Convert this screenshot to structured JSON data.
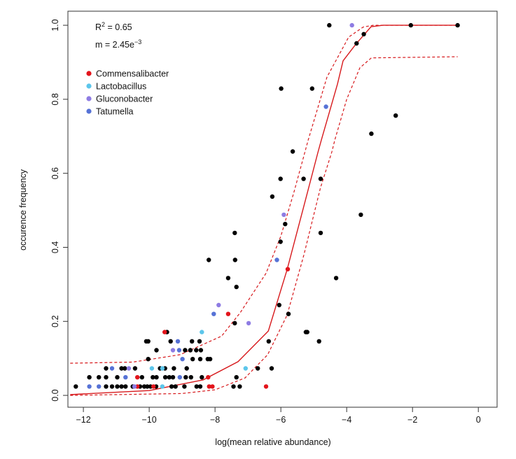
{
  "chart_data": {
    "type": "scatter",
    "title": "",
    "xlabel": "log(mean relative abundance)",
    "ylabel": "occurence frequency",
    "xlim": [
      -12.47,
      0.57
    ],
    "ylim": [
      -0.032,
      1.038
    ],
    "xticks": [
      -12,
      -10,
      -8,
      -6,
      -4,
      -2,
      0
    ],
    "xtick_labels": [
      "−12",
      "−10",
      "−8",
      "−6",
      "−4",
      "−2",
      "0"
    ],
    "yticks": [
      0,
      0.2,
      0.4,
      0.6,
      0.8,
      1.0
    ],
    "ytick_labels": [
      "0.0",
      "0.2",
      "0.4",
      "0.6",
      "0.8",
      "1.0"
    ],
    "grid": false,
    "legend_position": "top-left",
    "annotations": {
      "r2_label": "R",
      "r2_sup": "2",
      "r2_value": " = 0.65",
      "m_label": "m = 2.45e",
      "m_sup": "−3"
    },
    "fit": {
      "color": "#d7191c",
      "model": [
        [
          -12.4,
          0.002
        ],
        [
          -12,
          0.004
        ],
        [
          -10,
          0.013
        ],
        [
          -8.36,
          0.042
        ],
        [
          -7.3,
          0.091
        ],
        [
          -6.38,
          0.174
        ],
        [
          -5.81,
          0.34
        ],
        [
          -5.29,
          0.515
        ],
        [
          -4.87,
          0.658
        ],
        [
          -4.77,
          0.69
        ],
        [
          -4.28,
          0.841
        ],
        [
          -4.11,
          0.904
        ],
        [
          -3.72,
          0.949
        ],
        [
          -3.26,
          0.996
        ],
        [
          -2.9,
          1.0
        ],
        [
          -0.63,
          1.0
        ]
      ],
      "upper": [
        [
          -12.4,
          0.087
        ],
        [
          -10.5,
          0.09
        ],
        [
          -9.06,
          0.11
        ],
        [
          -7.8,
          0.16
        ],
        [
          -7.23,
          0.224
        ],
        [
          -6.45,
          0.33
        ],
        [
          -6.0,
          0.43
        ],
        [
          -5.6,
          0.55
        ],
        [
          -5.17,
          0.69
        ],
        [
          -4.6,
          0.86
        ],
        [
          -3.94,
          0.968
        ],
        [
          -3.5,
          0.995
        ],
        [
          -3.2,
          1.0
        ],
        [
          -0.63,
          1.0
        ]
      ],
      "lower": [
        [
          -12.4,
          0.0
        ],
        [
          -9,
          0.005
        ],
        [
          -8,
          0.015
        ],
        [
          -7.09,
          0.047
        ],
        [
          -6.4,
          0.11
        ],
        [
          -5.81,
          0.217
        ],
        [
          -5.3,
          0.38
        ],
        [
          -4.8,
          0.56
        ],
        [
          -4.45,
          0.658
        ],
        [
          -4.36,
          0.69
        ],
        [
          -4.0,
          0.8
        ],
        [
          -3.6,
          0.885
        ],
        [
          -3.25,
          0.912
        ],
        [
          -0.63,
          0.915
        ]
      ]
    },
    "series": [
      {
        "color": "#000000",
        "points": [
          [
            -12.23,
            0.024
          ],
          [
            -11.31,
            0.024
          ],
          [
            -11.13,
            0.024
          ],
          [
            -10.97,
            0.024
          ],
          [
            -10.84,
            0.024
          ],
          [
            -10.72,
            0.024
          ],
          [
            -10.5,
            0.024
          ],
          [
            -10.28,
            0.024
          ],
          [
            -10.15,
            0.024
          ],
          [
            -10.06,
            0.024
          ],
          [
            -9.96,
            0.024
          ],
          [
            -9.79,
            0.024
          ],
          [
            -9.32,
            0.024
          ],
          [
            -9.2,
            0.024
          ],
          [
            -8.93,
            0.024
          ],
          [
            -8.56,
            0.024
          ],
          [
            -8.45,
            0.024
          ],
          [
            -7.44,
            0.024
          ],
          [
            -7.25,
            0.024
          ],
          [
            -11.82,
            0.049
          ],
          [
            -11.53,
            0.049
          ],
          [
            -11.31,
            0.049
          ],
          [
            -10.97,
            0.049
          ],
          [
            -10.22,
            0.049
          ],
          [
            -9.89,
            0.049
          ],
          [
            -9.78,
            0.049
          ],
          [
            -9.51,
            0.049
          ],
          [
            -9.39,
            0.049
          ],
          [
            -9.28,
            0.049
          ],
          [
            -8.89,
            0.049
          ],
          [
            -8.73,
            0.049
          ],
          [
            -8.4,
            0.049
          ],
          [
            -7.35,
            0.049
          ],
          [
            -11.31,
            0.073
          ],
          [
            -10.84,
            0.073
          ],
          [
            -10.74,
            0.073
          ],
          [
            -10.43,
            0.073
          ],
          [
            -9.67,
            0.073
          ],
          [
            -9.52,
            0.073
          ],
          [
            -9.25,
            0.073
          ],
          [
            -8.86,
            0.073
          ],
          [
            -6.7,
            0.073
          ],
          [
            -6.28,
            0.073
          ],
          [
            -10.03,
            0.098
          ],
          [
            -8.68,
            0.098
          ],
          [
            -8.45,
            0.098
          ],
          [
            -8.22,
            0.098
          ],
          [
            -8.15,
            0.098
          ],
          [
            -9.78,
            0.122
          ],
          [
            -8.91,
            0.122
          ],
          [
            -8.75,
            0.122
          ],
          [
            -8.57,
            0.122
          ],
          [
            -8.43,
            0.122
          ],
          [
            -10.09,
            0.146
          ],
          [
            -10.03,
            0.146
          ],
          [
            -9.35,
            0.146
          ],
          [
            -8.7,
            0.146
          ],
          [
            -8.47,
            0.146
          ],
          [
            -6.37,
            0.146
          ],
          [
            -4.84,
            0.146
          ],
          [
            -9.46,
            0.171
          ],
          [
            -5.24,
            0.171
          ],
          [
            -5.2,
            0.171
          ],
          [
            -7.4,
            0.195
          ],
          [
            -5.77,
            0.22
          ],
          [
            -6.05,
            0.244
          ],
          [
            -7.35,
            0.293
          ],
          [
            -7.6,
            0.317
          ],
          [
            -4.32,
            0.317
          ],
          [
            -8.19,
            0.366
          ],
          [
            -7.39,
            0.366
          ],
          [
            -6.01,
            0.415
          ],
          [
            -7.4,
            0.439
          ],
          [
            -4.79,
            0.439
          ],
          [
            -5.87,
            0.463
          ],
          [
            -3.57,
            0.488
          ],
          [
            -6.26,
            0.537
          ],
          [
            -6.01,
            0.585
          ],
          [
            -5.31,
            0.585
          ],
          [
            -4.79,
            0.585
          ],
          [
            -5.64,
            0.659
          ],
          [
            -3.25,
            0.707
          ],
          [
            -2.51,
            0.756
          ],
          [
            -5.99,
            0.829
          ],
          [
            -5.05,
            0.829
          ],
          [
            -3.7,
            0.951
          ],
          [
            -3.48,
            0.976
          ],
          [
            -4.53,
            1.0
          ],
          [
            -2.05,
            1.0
          ],
          [
            -0.63,
            1.0
          ]
        ]
      },
      {
        "name": "Commensalibacter",
        "color": "#e3141b",
        "points": [
          [
            -10.36,
            0.024
          ],
          [
            -9.87,
            0.024
          ],
          [
            -8.18,
            0.024
          ],
          [
            -8.08,
            0.024
          ],
          [
            -6.45,
            0.024
          ],
          [
            -10.36,
            0.049
          ],
          [
            -8.21,
            0.049
          ],
          [
            -9.53,
            0.171
          ],
          [
            -7.6,
            0.22
          ],
          [
            -5.79,
            0.341
          ]
        ]
      },
      {
        "name": "Lactobacillus",
        "color": "#5cc6eb",
        "points": [
          [
            -9.6,
            0.024
          ],
          [
            -9.92,
            0.073
          ],
          [
            -9.6,
            0.073
          ],
          [
            -7.07,
            0.073
          ],
          [
            -8.4,
            0.171
          ]
        ]
      },
      {
        "name": "Gluconobacter",
        "color": "#8e7ce3",
        "points": [
          [
            -10.45,
            0.024
          ],
          [
            -10.62,
            0.073
          ],
          [
            -9.28,
            0.122
          ],
          [
            -6.98,
            0.195
          ],
          [
            -7.89,
            0.244
          ],
          [
            -5.91,
            0.488
          ],
          [
            -3.84,
            1.0
          ]
        ]
      },
      {
        "name": "Tatumella",
        "color": "#5672d6",
        "points": [
          [
            -11.82,
            0.024
          ],
          [
            -11.53,
            0.024
          ],
          [
            -10.72,
            0.049
          ],
          [
            -9.07,
            0.049
          ],
          [
            -11.13,
            0.073
          ],
          [
            -8.99,
            0.098
          ],
          [
            -9.09,
            0.122
          ],
          [
            -9.13,
            0.146
          ],
          [
            -8.04,
            0.22
          ],
          [
            -6.12,
            0.366
          ],
          [
            -4.63,
            0.78
          ]
        ]
      }
    ]
  }
}
